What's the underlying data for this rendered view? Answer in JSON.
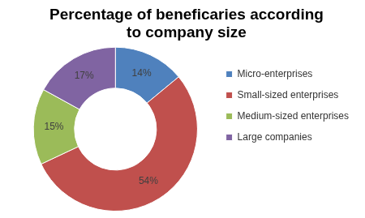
{
  "chart_data": {
    "type": "doughnut",
    "title": "Percentage of beneficaries according to company size",
    "categories": [
      "Micro-enterprises",
      "Small-sized enterprises",
      "Medium-sized enterprises",
      "Large companies"
    ],
    "values": [
      14,
      54,
      15,
      17
    ],
    "value_labels": [
      "14%",
      "54%",
      "15%",
      "17%"
    ],
    "colors": [
      "#4f81bd",
      "#c0504d",
      "#9bbb59",
      "#8064a2"
    ],
    "legend": "right",
    "data_labels": true
  }
}
